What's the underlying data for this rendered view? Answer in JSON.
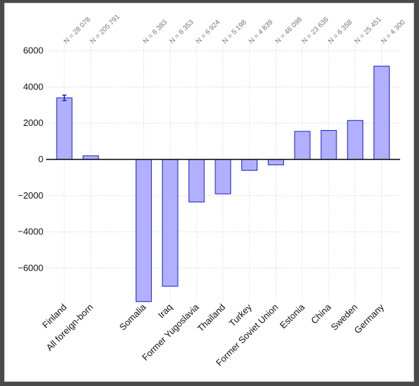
{
  "chart_data": {
    "type": "bar",
    "title": "",
    "xlabel": "",
    "ylabel": "",
    "ylim": [
      -8000,
      6500
    ],
    "yticks": [
      6000,
      4000,
      2000,
      0,
      -2000,
      -4000,
      -6000
    ],
    "ytick_labels": [
      "6000",
      "4000",
      "2000",
      "0",
      "−2000",
      "−4000",
      "−6000"
    ],
    "grid": true,
    "bar_fill": "#b0b0ff",
    "bar_stroke": "#1a1acc",
    "errorbar_color": "#1a1acc",
    "gap_after_index": 1,
    "categories": [
      "Finland",
      "All foreign-born",
      "Somalia",
      "Iraq",
      "Former Yugoslavia",
      "Thailand",
      "Turkey",
      "Former Soviet Union",
      "Estonia",
      "China",
      "Sweden",
      "Germany"
    ],
    "values": [
      3400,
      200,
      -7850,
      -7000,
      -2350,
      -1900,
      -600,
      -300,
      1550,
      1600,
      2150,
      5150
    ],
    "error_bars": [
      [
        3250,
        3550
      ],
      null,
      null,
      null,
      null,
      null,
      null,
      null,
      null,
      null,
      null,
      null
    ],
    "n_labels": [
      "N = 28 078",
      "N = 205 791",
      "N = 6 383",
      "N = 6 353",
      "N = 6 924",
      "N = 5 198",
      "N = 4 839",
      "N = 46 098",
      "N = 23 636",
      "N = 6 358",
      "N = 25 451",
      "N = 4 300"
    ]
  }
}
